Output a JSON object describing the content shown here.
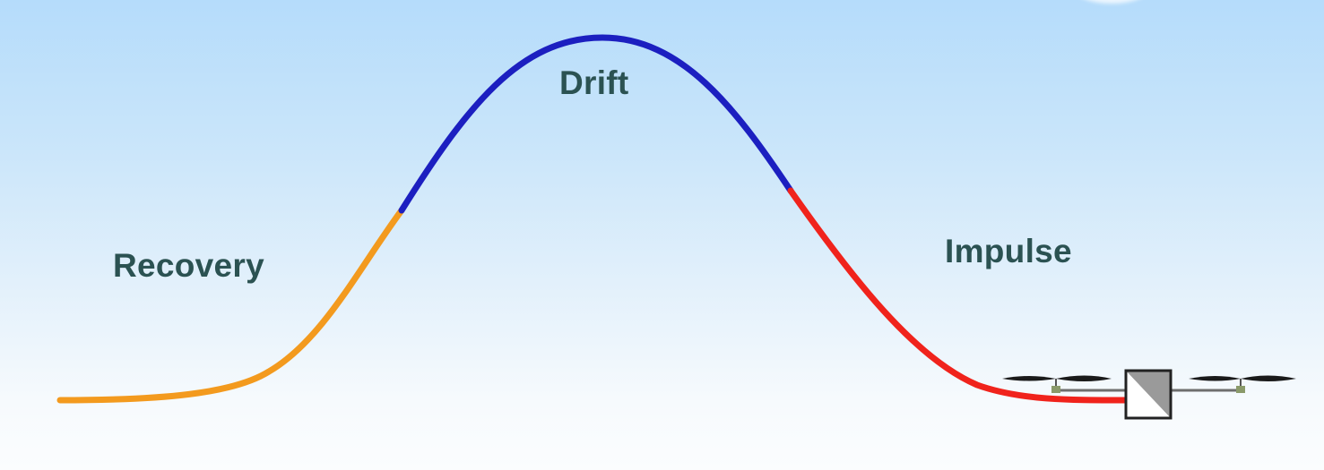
{
  "labels": {
    "recovery": "Recovery",
    "drift": "Drift",
    "impulse": "Impulse"
  },
  "colors": {
    "recovery": "#f39a1e",
    "drift": "#1c1fc0",
    "impulse": "#f0231c",
    "text": "#2b5252"
  },
  "icons": {
    "sprinkler": "sprinkler-head-icon"
  }
}
